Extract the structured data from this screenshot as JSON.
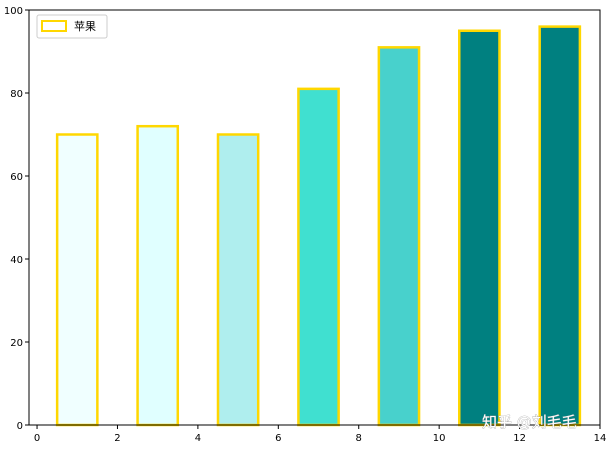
{
  "chart_data": {
    "type": "bar",
    "title": "",
    "xlabel": "",
    "ylabel": "",
    "x": [
      1,
      3,
      5,
      7,
      9,
      11,
      13
    ],
    "values": [
      70,
      72,
      70,
      81,
      91,
      95,
      96
    ],
    "bar_width_data": 1.0,
    "xlim": [
      -0.2,
      14
    ],
    "ylim": [
      0,
      100
    ],
    "x_ticks": [
      0,
      2,
      4,
      6,
      8,
      10,
      12,
      14
    ],
    "y_ticks": [
      0,
      20,
      40,
      60,
      80,
      100
    ],
    "grid": false,
    "legend": {
      "placement": "top-left",
      "entries": [
        "苹果"
      ]
    },
    "series": [
      {
        "name": "苹果",
        "values": [
          70,
          72,
          70,
          81,
          91,
          95,
          96
        ]
      }
    ],
    "bar_fill_colors": [
      "#f0ffff",
      "#e0ffff",
      "#afeeee",
      "#40e0d0",
      "#48d1cc",
      "#008080",
      "#008080"
    ],
    "bar_edge_color": "#ffd700"
  },
  "watermark": "知乎 @刘毛毛"
}
